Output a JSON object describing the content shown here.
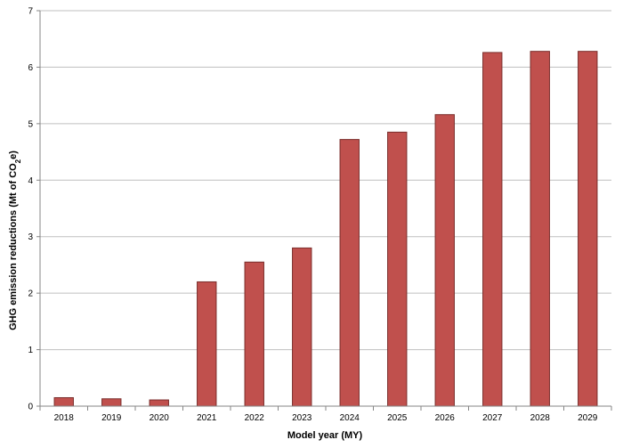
{
  "chart_data": {
    "type": "bar",
    "categories": [
      "2018",
      "2019",
      "2020",
      "2021",
      "2022",
      "2023",
      "2024",
      "2025",
      "2026",
      "2027",
      "2028",
      "2029"
    ],
    "values": [
      0.15,
      0.13,
      0.11,
      2.2,
      2.55,
      2.8,
      4.72,
      4.85,
      5.16,
      6.26,
      6.28,
      6.28
    ],
    "title": "",
    "xlabel": "Model year (MY)",
    "ylabel": {
      "prefix": "GHG emission reductions (Mt of CO",
      "subscript": "2",
      "suffix": "e)"
    },
    "ylim": [
      0,
      7
    ],
    "yticks": [
      "0",
      "1",
      "2",
      "3",
      "4",
      "5",
      "6",
      "7"
    ],
    "grid": true,
    "legend": "none",
    "colors": {
      "bar_fill": "#c0504d",
      "bar_stroke": "#7a2e2c",
      "grid": "#bfbfbf",
      "axis": "#868686"
    }
  }
}
